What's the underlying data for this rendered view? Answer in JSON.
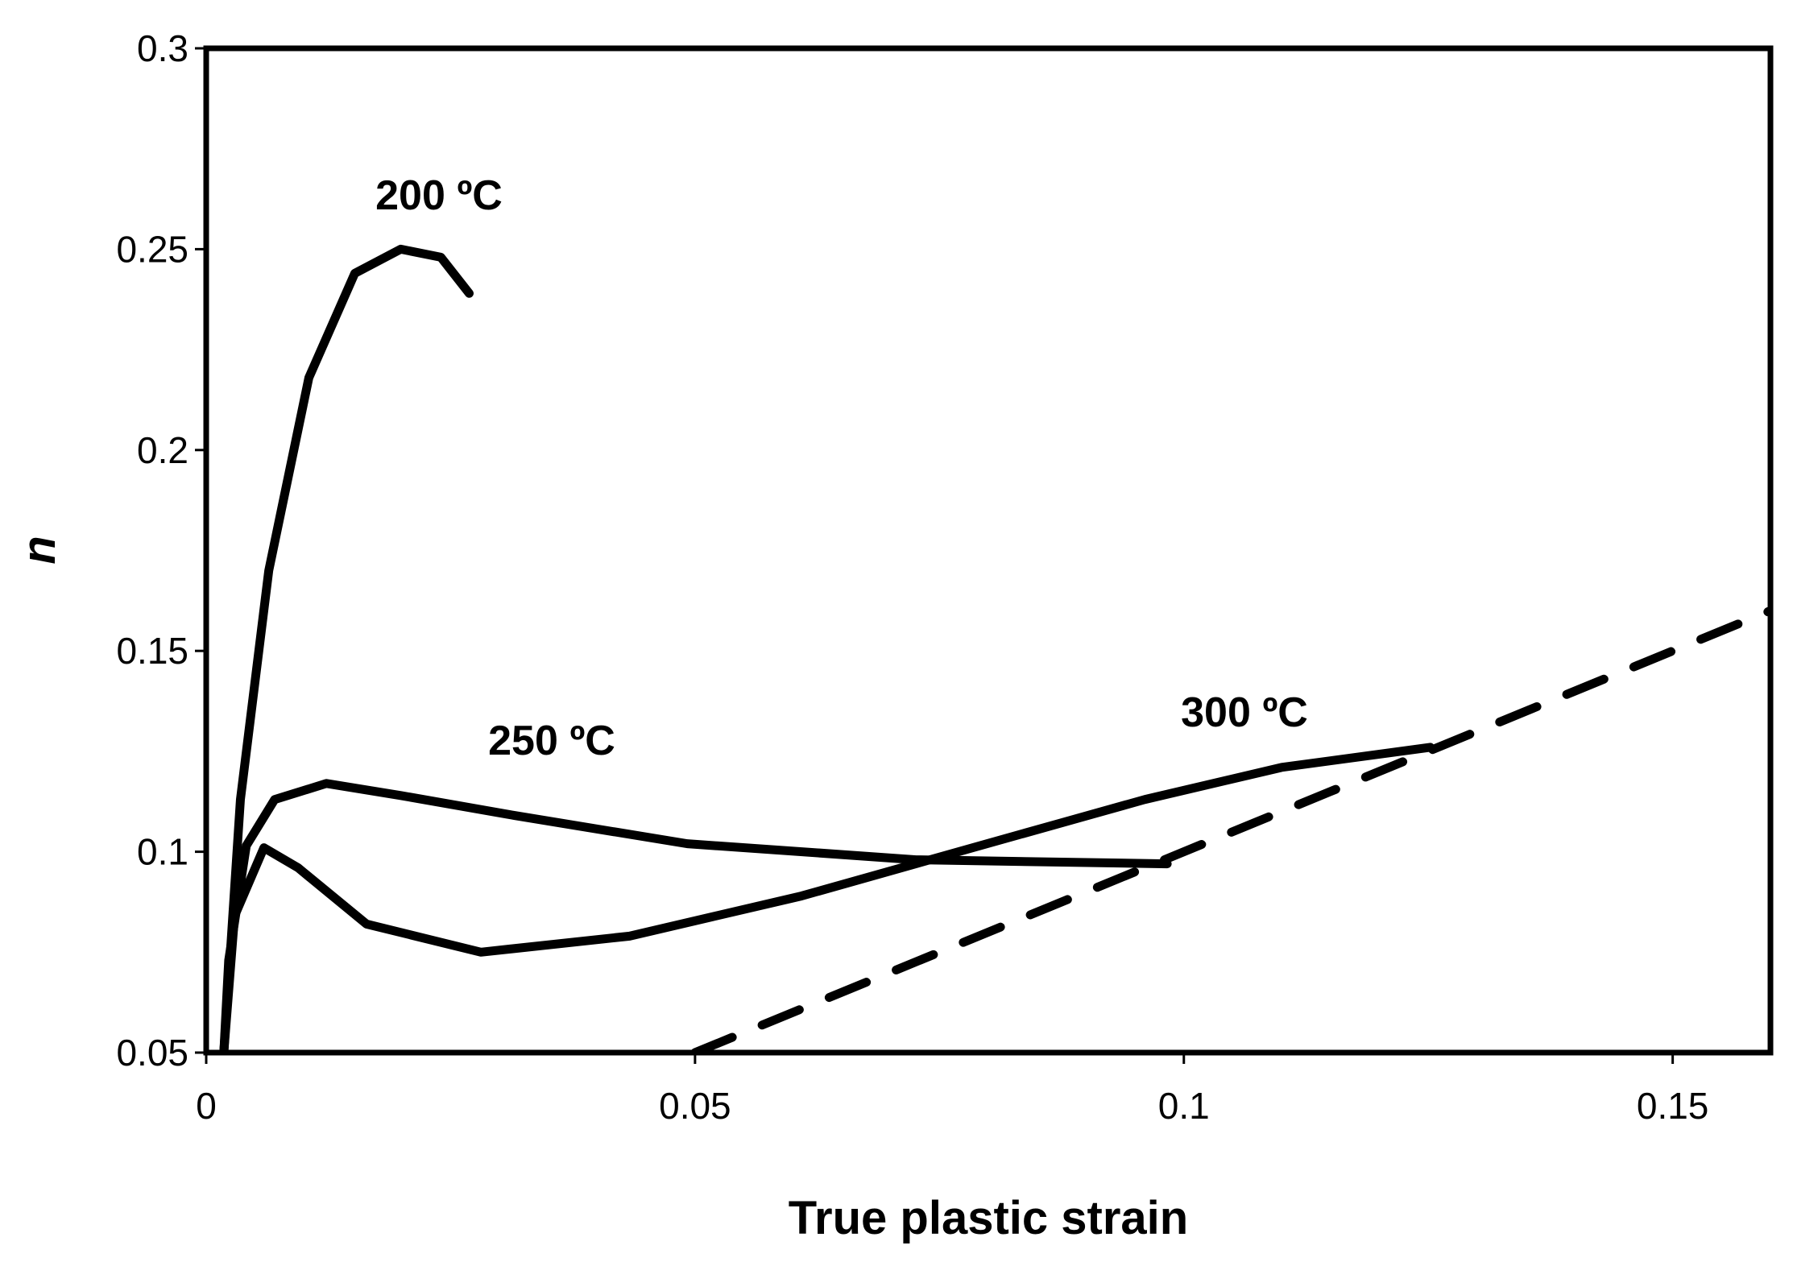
{
  "chart_data": {
    "type": "line",
    "xlabel": "True plastic strain",
    "ylabel": "n",
    "xlim": [
      0,
      0.16
    ],
    "ylim": [
      0.05,
      0.3
    ],
    "xticks": [
      0,
      0.05,
      0.1,
      0.15
    ],
    "yticks": [
      0.05,
      0.1,
      0.15,
      0.2,
      0.25,
      0.3
    ],
    "grid": false,
    "series": [
      {
        "name": "200 ºC",
        "color": "#000000",
        "style": "solid",
        "x": [
          0.0018,
          0.0035,
          0.0064,
          0.0105,
          0.0152,
          0.0199,
          0.024,
          0.0269
        ],
        "values": [
          0.05,
          0.113,
          0.17,
          0.218,
          0.244,
          0.25,
          0.248,
          0.239
        ]
      },
      {
        "name": "250 ºC",
        "color": "#000000",
        "style": "solid",
        "x": [
          0.0018,
          0.0023,
          0.0041,
          0.007,
          0.0123,
          0.0199,
          0.0316,
          0.0492,
          0.0726,
          0.0983
        ],
        "values": [
          0.05,
          0.073,
          0.1015,
          0.113,
          0.117,
          0.114,
          0.109,
          0.102,
          0.098,
          0.097
        ]
      },
      {
        "name": "300 ºC",
        "color": "#000000",
        "style": "solid",
        "x": [
          0.0018,
          0.0029,
          0.0059,
          0.0094,
          0.0164,
          0.0281,
          0.0433,
          0.0609,
          0.0784,
          0.096,
          0.11,
          0.1252
        ],
        "values": [
          0.05,
          0.084,
          0.101,
          0.096,
          0.082,
          0.075,
          0.079,
          0.089,
          0.101,
          0.113,
          0.121,
          0.126
        ]
      },
      {
        "color": "#000000",
        "style": "dashed",
        "x": [
          0.05,
          0.16
        ],
        "values": [
          0.05,
          0.16
        ]
      }
    ]
  }
}
